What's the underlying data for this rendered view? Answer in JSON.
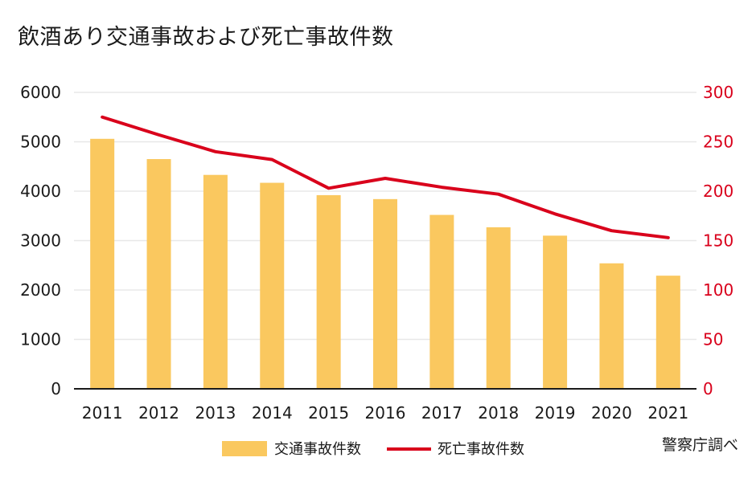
{
  "title": "飲酒あり交通事故および死亡事故件数",
  "source": "警察庁調べ",
  "colors": {
    "bar": "#fac85f",
    "line": "#d9001b",
    "grid": "#e8e8e8",
    "axis": "#1a1a1a"
  },
  "chart_data": {
    "type": "bar+line",
    "categories": [
      "2011",
      "2012",
      "2013",
      "2014",
      "2015",
      "2016",
      "2017",
      "2018",
      "2019",
      "2020",
      "2021"
    ],
    "series": [
      {
        "name": "交通事故件数",
        "type": "bar",
        "axis": "left",
        "values": [
          5060,
          4650,
          4330,
          4170,
          3920,
          3840,
          3520,
          3270,
          3100,
          2540,
          2290
        ]
      },
      {
        "name": "死亡事故件数",
        "type": "line",
        "axis": "right",
        "values": [
          275,
          257,
          240,
          232,
          203,
          213,
          204,
          197,
          177,
          160,
          153
        ]
      }
    ],
    "yleft": {
      "ylim": [
        0,
        6000
      ],
      "ticks": [
        "0",
        "1000",
        "2000",
        "3000",
        "4000",
        "5000",
        "6000"
      ]
    },
    "yright": {
      "ylim": [
        0,
        300
      ],
      "ticks": [
        "0",
        "50",
        "100",
        "150",
        "200",
        "250",
        "300"
      ]
    },
    "grid": true,
    "legend": "bottom-center"
  }
}
